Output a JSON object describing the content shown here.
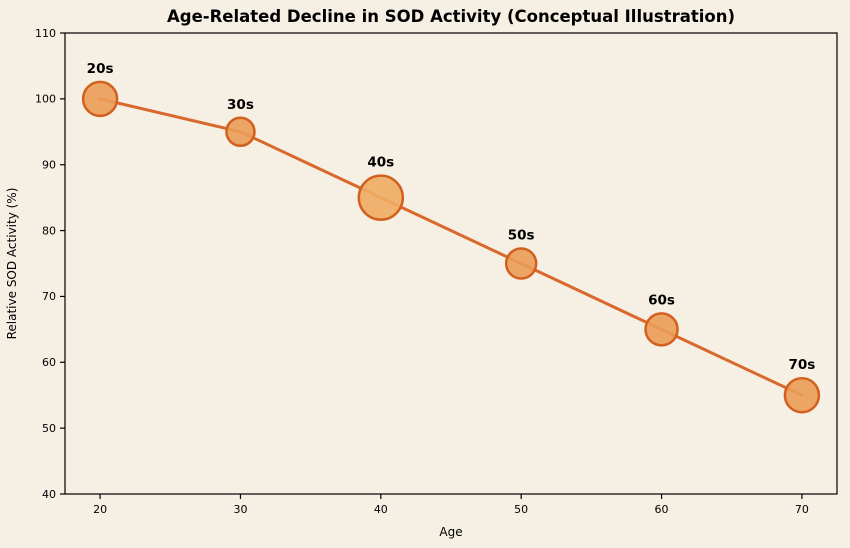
{
  "chart_data": {
    "type": "line",
    "title": "Age-Related Decline in SOD Activity (Conceptual Illustration)",
    "xlabel": "Age",
    "ylabel": "Relative SOD Activity (%)",
    "x": [
      20,
      30,
      40,
      50,
      60,
      70
    ],
    "values": [
      100,
      95,
      85,
      75,
      65,
      55
    ],
    "point_labels": [
      "20s",
      "30s",
      "40s",
      "50s",
      "60s",
      "70s"
    ],
    "marker_radii": [
      17,
      14,
      22,
      15,
      16,
      17
    ],
    "xticks": [
      20,
      30,
      40,
      50,
      60,
      70
    ],
    "yticks": [
      40,
      50,
      60,
      70,
      80,
      90,
      100,
      110
    ],
    "xlim": [
      17.5,
      72.5
    ],
    "ylim": [
      40,
      110
    ],
    "grid": false,
    "legend": null,
    "colors": {
      "background": "#f5efe4",
      "line": "#d9682c",
      "marker_fill": "#eb9c55",
      "marker_fill_highlight": "#f0ac62",
      "marker_edge": "#d2601f",
      "axis": "#000000",
      "text": "#000000"
    }
  }
}
